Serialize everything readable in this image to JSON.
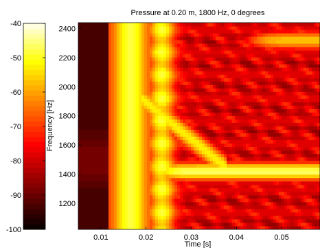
{
  "chart_data": {
    "type": "heatmap",
    "title": "Pressure at 0.20 m, 1800 Hz, 0 degrees",
    "xlabel": "Time [s]",
    "ylabel": "Frequency [Hz]",
    "xlim": [
      0.005,
      0.0585
    ],
    "ylim": [
      1020,
      2440
    ],
    "xticks": [
      0.01,
      0.02,
      0.03,
      0.04,
      0.05
    ],
    "xtick_labels": [
      "0.01",
      "0.02",
      "0.03",
      "0.04",
      "0.05"
    ],
    "yticks": [
      1200,
      1400,
      1600,
      1800,
      2000,
      2200,
      2400
    ],
    "ytick_labels": [
      "1200",
      "1400",
      "1600",
      "1800",
      "2000",
      "2200",
      "2400"
    ],
    "colormap": "hot",
    "colorbar": {
      "range": [
        -100,
        -40
      ],
      "ticks": [
        -100,
        -90,
        -80,
        -70,
        -60,
        -50,
        -40
      ],
      "tick_labels": [
        "-100",
        "-90",
        "-80",
        "-70",
        "-60",
        "-50",
        "-40"
      ],
      "levels": 40
    },
    "features": [
      {
        "kind": "vertical-band",
        "time": 0.0165,
        "level_db": -48
      },
      {
        "kind": "vertical-band",
        "time": 0.0235,
        "level_db": -52
      },
      {
        "kind": "horizontal-band",
        "frequency": 1420,
        "time_start": 0.022,
        "level_db": -46
      },
      {
        "kind": "horizontal-band",
        "frequency": 2320,
        "time_start": 0.042,
        "level_db": -56
      },
      {
        "kind": "diagonal-band",
        "time_start": 0.021,
        "freq_start": 1870,
        "time_end": 0.034,
        "freq_end": 1540,
        "level_db": -52
      }
    ]
  }
}
